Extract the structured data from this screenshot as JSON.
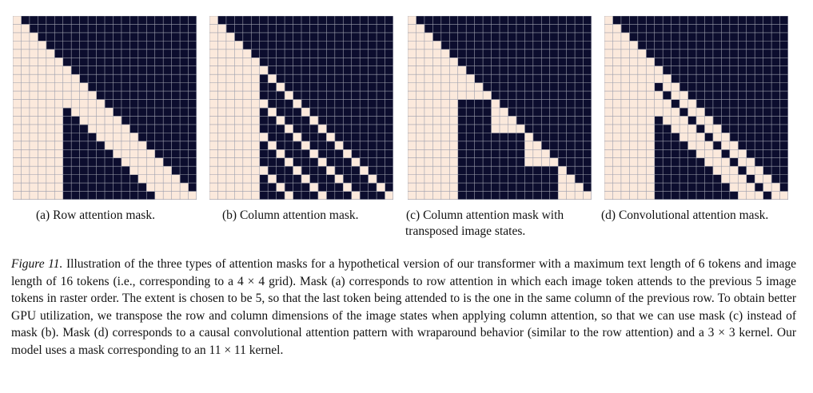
{
  "figure": {
    "label": "Figure 11.",
    "caption": "Illustration of the three types of attention masks for a hypothetical version of our transformer with a maximum text length of 6 tokens and image length of 16 tokens (i.e., corresponding to a 4 × 4 grid). Mask (a) corresponds to row attention in which each image token attends to the previous 5 image tokens in raster order. The extent is chosen to be 5, so that the last token being attended to is the one in the same column of the previous row. To obtain better GPU utilization, we transpose the row and column dimensions of the image states when applying column attention, so that we can use mask (c) instead of mask (b). Mask (d) corresponds to a causal convolutional attention pattern with wraparound behavior (similar to the row attention) and a 3 × 3 kernel. Our model uses a mask corresponding to an 11 × 11 kernel."
  },
  "colors": {
    "attend": "#fbe9dc",
    "masked": "#0c0d2e",
    "grid": "#9d9fad"
  },
  "mask_config": {
    "text_len": 6,
    "image_len": 16,
    "grid_side": 4,
    "row_extent": 5,
    "kernel": 3
  },
  "panels": [
    {
      "id": "a",
      "mask_type": "row",
      "caption_lines": [
        "(a) Row attention mask."
      ]
    },
    {
      "id": "b",
      "mask_type": "column",
      "caption_lines": [
        "(b) Column attention mask."
      ]
    },
    {
      "id": "c",
      "mask_type": "column-transposed",
      "caption_lines": [
        "(c) Column attention mask with",
        "transposed image states."
      ]
    },
    {
      "id": "d",
      "mask_type": "convolutional",
      "caption_lines": [
        "(d) Convolutional attention mask."
      ]
    }
  ]
}
